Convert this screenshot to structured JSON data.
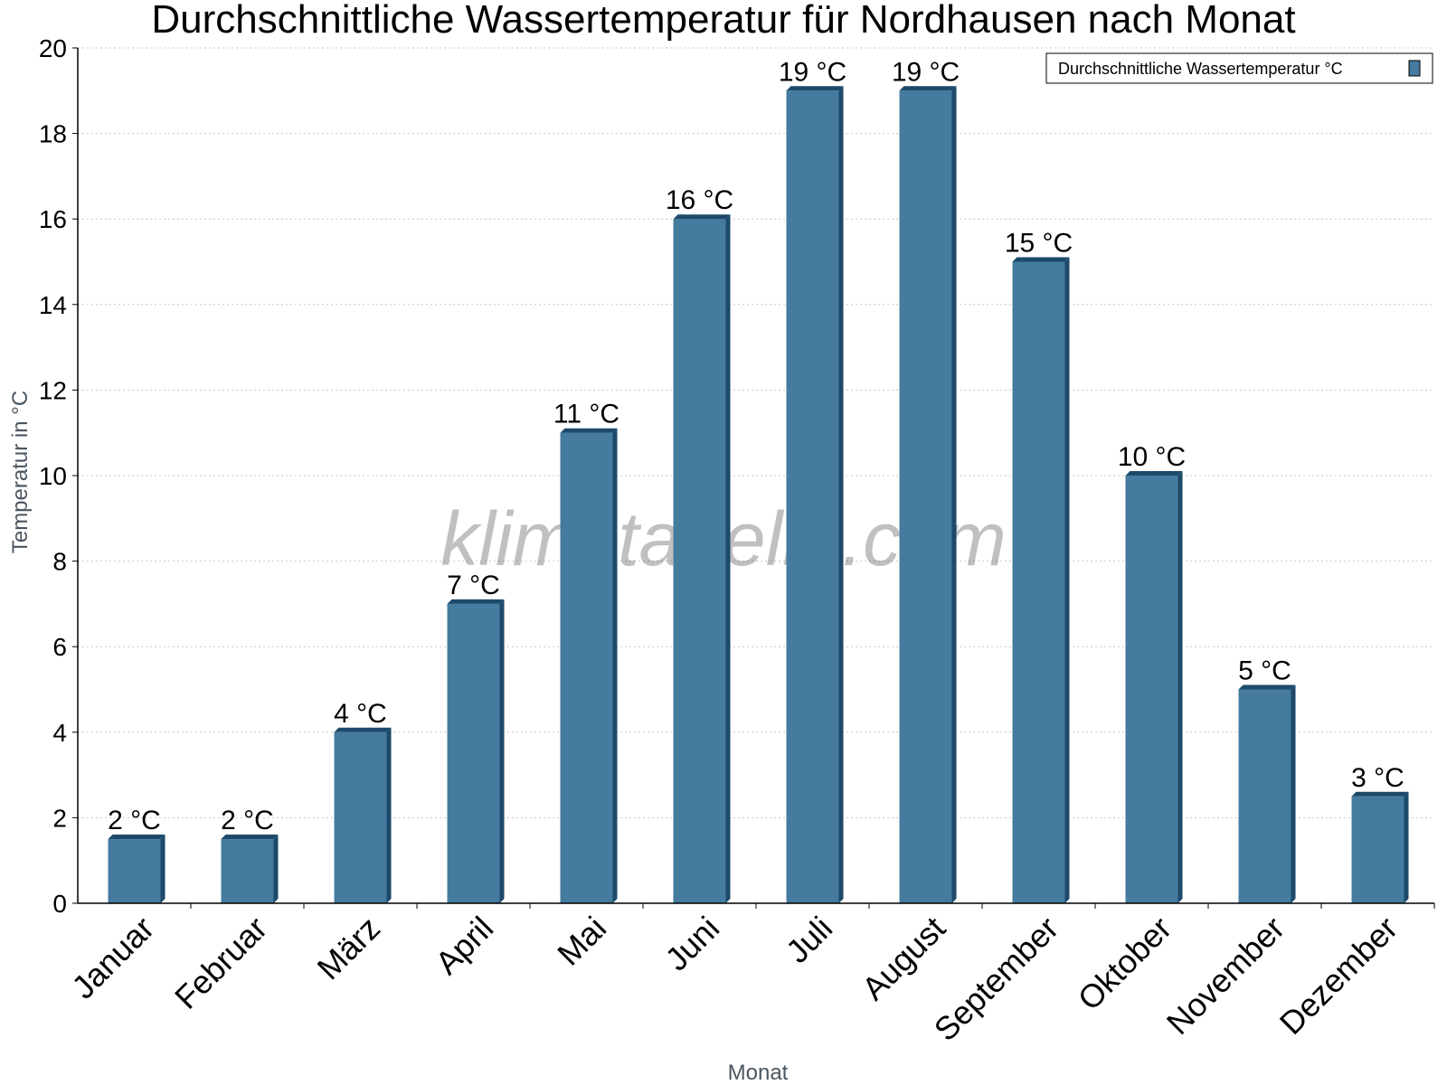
{
  "chart_data": {
    "type": "bar",
    "title": "Durchschnittliche Wassertemperatur für Nordhausen nach Monat",
    "xlabel": "Monat",
    "ylabel": "Temperatur in °C",
    "ylim": [
      0,
      20
    ],
    "yticks": [
      0,
      2,
      4,
      6,
      8,
      10,
      12,
      14,
      16,
      18,
      20
    ],
    "grid": true,
    "legend_position": "top-right",
    "categories": [
      "Januar",
      "Februar",
      "März",
      "April",
      "Mai",
      "Juni",
      "Juli",
      "August",
      "September",
      "Oktober",
      "November",
      "Dezember"
    ],
    "series": [
      {
        "name": "Durchschnittliche Wassertemperatur °C",
        "values": [
          1.5,
          1.5,
          4,
          7,
          11,
          16,
          19,
          19,
          15,
          10,
          5,
          2.5
        ],
        "labels": [
          "2 °C",
          "2 °C",
          "4 °C",
          "7 °C",
          "11 °C",
          "16 °C",
          "19 °C",
          "19 °C",
          "15 °C",
          "10 °C",
          "5 °C",
          "3 °C"
        ],
        "color": "#447b9e",
        "shade_color": "#1d4a6b"
      }
    ],
    "watermark": "klimatabelle.com"
  }
}
